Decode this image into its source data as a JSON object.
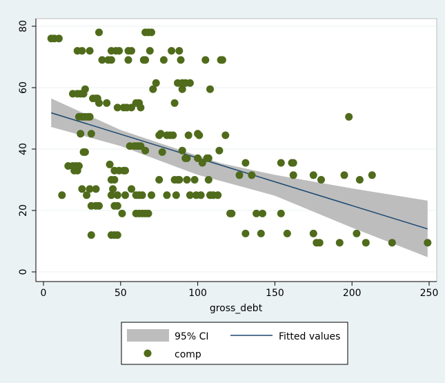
{
  "colors": {
    "background": "#eaf2f3",
    "plot_area": "#ffffff",
    "grid": "#eaf2f3",
    "ci_band": "#bdbdbd",
    "fit_line": "#1a476f",
    "points": "#4f6b1b"
  },
  "chart_data": {
    "type": "scatter",
    "title": "",
    "xlabel": "gross_debt",
    "ylabel": "",
    "xlim": [
      0,
      250
    ],
    "ylim": [
      0,
      80
    ],
    "x_ticks": [
      "0",
      "50",
      "100",
      "150",
      "200",
      "250"
    ],
    "y_ticks": [
      "0",
      "20",
      "40",
      "60",
      "80"
    ],
    "grid": "horizontal",
    "legend_position": "bottom",
    "legend": {
      "ci_label": "95% CI",
      "fit_label": "Fitted values",
      "points_label": "comp"
    },
    "fit": {
      "x_start": 5,
      "y_start": 51.8,
      "x_end": 249,
      "y_end": 14
    },
    "ci_band": {
      "x": [
        5,
        50,
        100,
        115,
        150,
        200,
        249
      ],
      "upper": [
        56.5,
        46.2,
        37.8,
        35.4,
        31.6,
        27.2,
        23.2
      ],
      "lower": [
        47.2,
        41.0,
        31.6,
        29.6,
        24.8,
        14.4,
        4.8
      ]
    },
    "series": [
      {
        "name": "comp",
        "points": [
          [
            5,
            76
          ],
          [
            7,
            76
          ],
          [
            10,
            76
          ],
          [
            12,
            25
          ],
          [
            16,
            34.5
          ],
          [
            19,
            34.5
          ],
          [
            20,
            33
          ],
          [
            22,
            33
          ],
          [
            21,
            34.5
          ],
          [
            23,
            34.5
          ],
          [
            19,
            58
          ],
          [
            22,
            58
          ],
          [
            24,
            58
          ],
          [
            26,
            58
          ],
          [
            27,
            59.5
          ],
          [
            22,
            72
          ],
          [
            25,
            72
          ],
          [
            30,
            72
          ],
          [
            44,
            72
          ],
          [
            47,
            72
          ],
          [
            49,
            72
          ],
          [
            55,
            72
          ],
          [
            57,
            72
          ],
          [
            23,
            50.5
          ],
          [
            25,
            50.5
          ],
          [
            27,
            50.5
          ],
          [
            29,
            50.5
          ],
          [
            30,
            50.5
          ],
          [
            24,
            45
          ],
          [
            26,
            39
          ],
          [
            27,
            39
          ],
          [
            25,
            27
          ],
          [
            28,
            25
          ],
          [
            30,
            27
          ],
          [
            34,
            27
          ],
          [
            31,
            21.5
          ],
          [
            34,
            21.5
          ],
          [
            36,
            21.5
          ],
          [
            31,
            12
          ],
          [
            44,
            12
          ],
          [
            46,
            12
          ],
          [
            48,
            12
          ],
          [
            31,
            45
          ],
          [
            32,
            56.5
          ],
          [
            34,
            56.5
          ],
          [
            35,
            56.5
          ],
          [
            36,
            55
          ],
          [
            41,
            55
          ],
          [
            36,
            78
          ],
          [
            38,
            69
          ],
          [
            42,
            69
          ],
          [
            44,
            69
          ],
          [
            43,
            35
          ],
          [
            44,
            30
          ],
          [
            46,
            30
          ],
          [
            45,
            27
          ],
          [
            48,
            25
          ],
          [
            44,
            25
          ],
          [
            46,
            21.5
          ],
          [
            48,
            21.5
          ],
          [
            46,
            33
          ],
          [
            49,
            33
          ],
          [
            52,
            33
          ],
          [
            53,
            33
          ],
          [
            48,
            53.5
          ],
          [
            52,
            53.5
          ],
          [
            54,
            53.5
          ],
          [
            51,
            19
          ],
          [
            53,
            25
          ],
          [
            55,
            69
          ],
          [
            56,
            41
          ],
          [
            59,
            41
          ],
          [
            61,
            41
          ],
          [
            63,
            41
          ],
          [
            57,
            27
          ],
          [
            60,
            25
          ],
          [
            62,
            25
          ],
          [
            64,
            25
          ],
          [
            57,
            53.5
          ],
          [
            60,
            55
          ],
          [
            62,
            55
          ],
          [
            63,
            53.5
          ],
          [
            60,
            19
          ],
          [
            62,
            19
          ],
          [
            64,
            19
          ],
          [
            66,
            19
          ],
          [
            68,
            19
          ],
          [
            65,
            69
          ],
          [
            66,
            69
          ],
          [
            66,
            78
          ],
          [
            68,
            78
          ],
          [
            70,
            78
          ],
          [
            69,
            72
          ],
          [
            66,
            39.5
          ],
          [
            70,
            25
          ],
          [
            71,
            59.5
          ],
          [
            73,
            61.5
          ],
          [
            75,
            44.5
          ],
          [
            76,
            45
          ],
          [
            77,
            39
          ],
          [
            78,
            69
          ],
          [
            80,
            44.5
          ],
          [
            82,
            44.5
          ],
          [
            84,
            44.5
          ],
          [
            75,
            30
          ],
          [
            80,
            25
          ],
          [
            83,
            72
          ],
          [
            85,
            55
          ],
          [
            85,
            30
          ],
          [
            87,
            30
          ],
          [
            88,
            30
          ],
          [
            86,
            25
          ],
          [
            87,
            61.5
          ],
          [
            88,
            72
          ],
          [
            89,
            69
          ],
          [
            90,
            61.5
          ],
          [
            90,
            59.5
          ],
          [
            92,
            61.5
          ],
          [
            95,
            61.5
          ],
          [
            90,
            39.5
          ],
          [
            92,
            37
          ],
          [
            93,
            37
          ],
          [
            94,
            44.5
          ],
          [
            93,
            30
          ],
          [
            95,
            25
          ],
          [
            98,
            30
          ],
          [
            99,
            25
          ],
          [
            100,
            45
          ],
          [
            101,
            44.5
          ],
          [
            100,
            37
          ],
          [
            102,
            25
          ],
          [
            103,
            35.5
          ],
          [
            105,
            69
          ],
          [
            106,
            37
          ],
          [
            107,
            37
          ],
          [
            107,
            30
          ],
          [
            108,
            59.5
          ],
          [
            108,
            25
          ],
          [
            110,
            25
          ],
          [
            113,
            25
          ],
          [
            114,
            39.5
          ],
          [
            115,
            69
          ],
          [
            116,
            69
          ],
          [
            118,
            44.5
          ],
          [
            121,
            19
          ],
          [
            122,
            19
          ],
          [
            127,
            31.5
          ],
          [
            131,
            35.5
          ],
          [
            131,
            12.5
          ],
          [
            135,
            31.5
          ],
          [
            138,
            19
          ],
          [
            141,
            12.5
          ],
          [
            142,
            19
          ],
          [
            154,
            35.5
          ],
          [
            154,
            19
          ],
          [
            158,
            12.5
          ],
          [
            161,
            35.5
          ],
          [
            162,
            35.5
          ],
          [
            162,
            31.5
          ],
          [
            175,
            31.5
          ],
          [
            175,
            12.5
          ],
          [
            177,
            9.5
          ],
          [
            179,
            9.5
          ],
          [
            180,
            30
          ],
          [
            192,
            9.5
          ],
          [
            195,
            31.5
          ],
          [
            198,
            50.5
          ],
          [
            203,
            12.5
          ],
          [
            205,
            30
          ],
          [
            209,
            9.5
          ],
          [
            213,
            31.5
          ],
          [
            226,
            9.5
          ],
          [
            249,
            9.5
          ]
        ]
      }
    ]
  }
}
